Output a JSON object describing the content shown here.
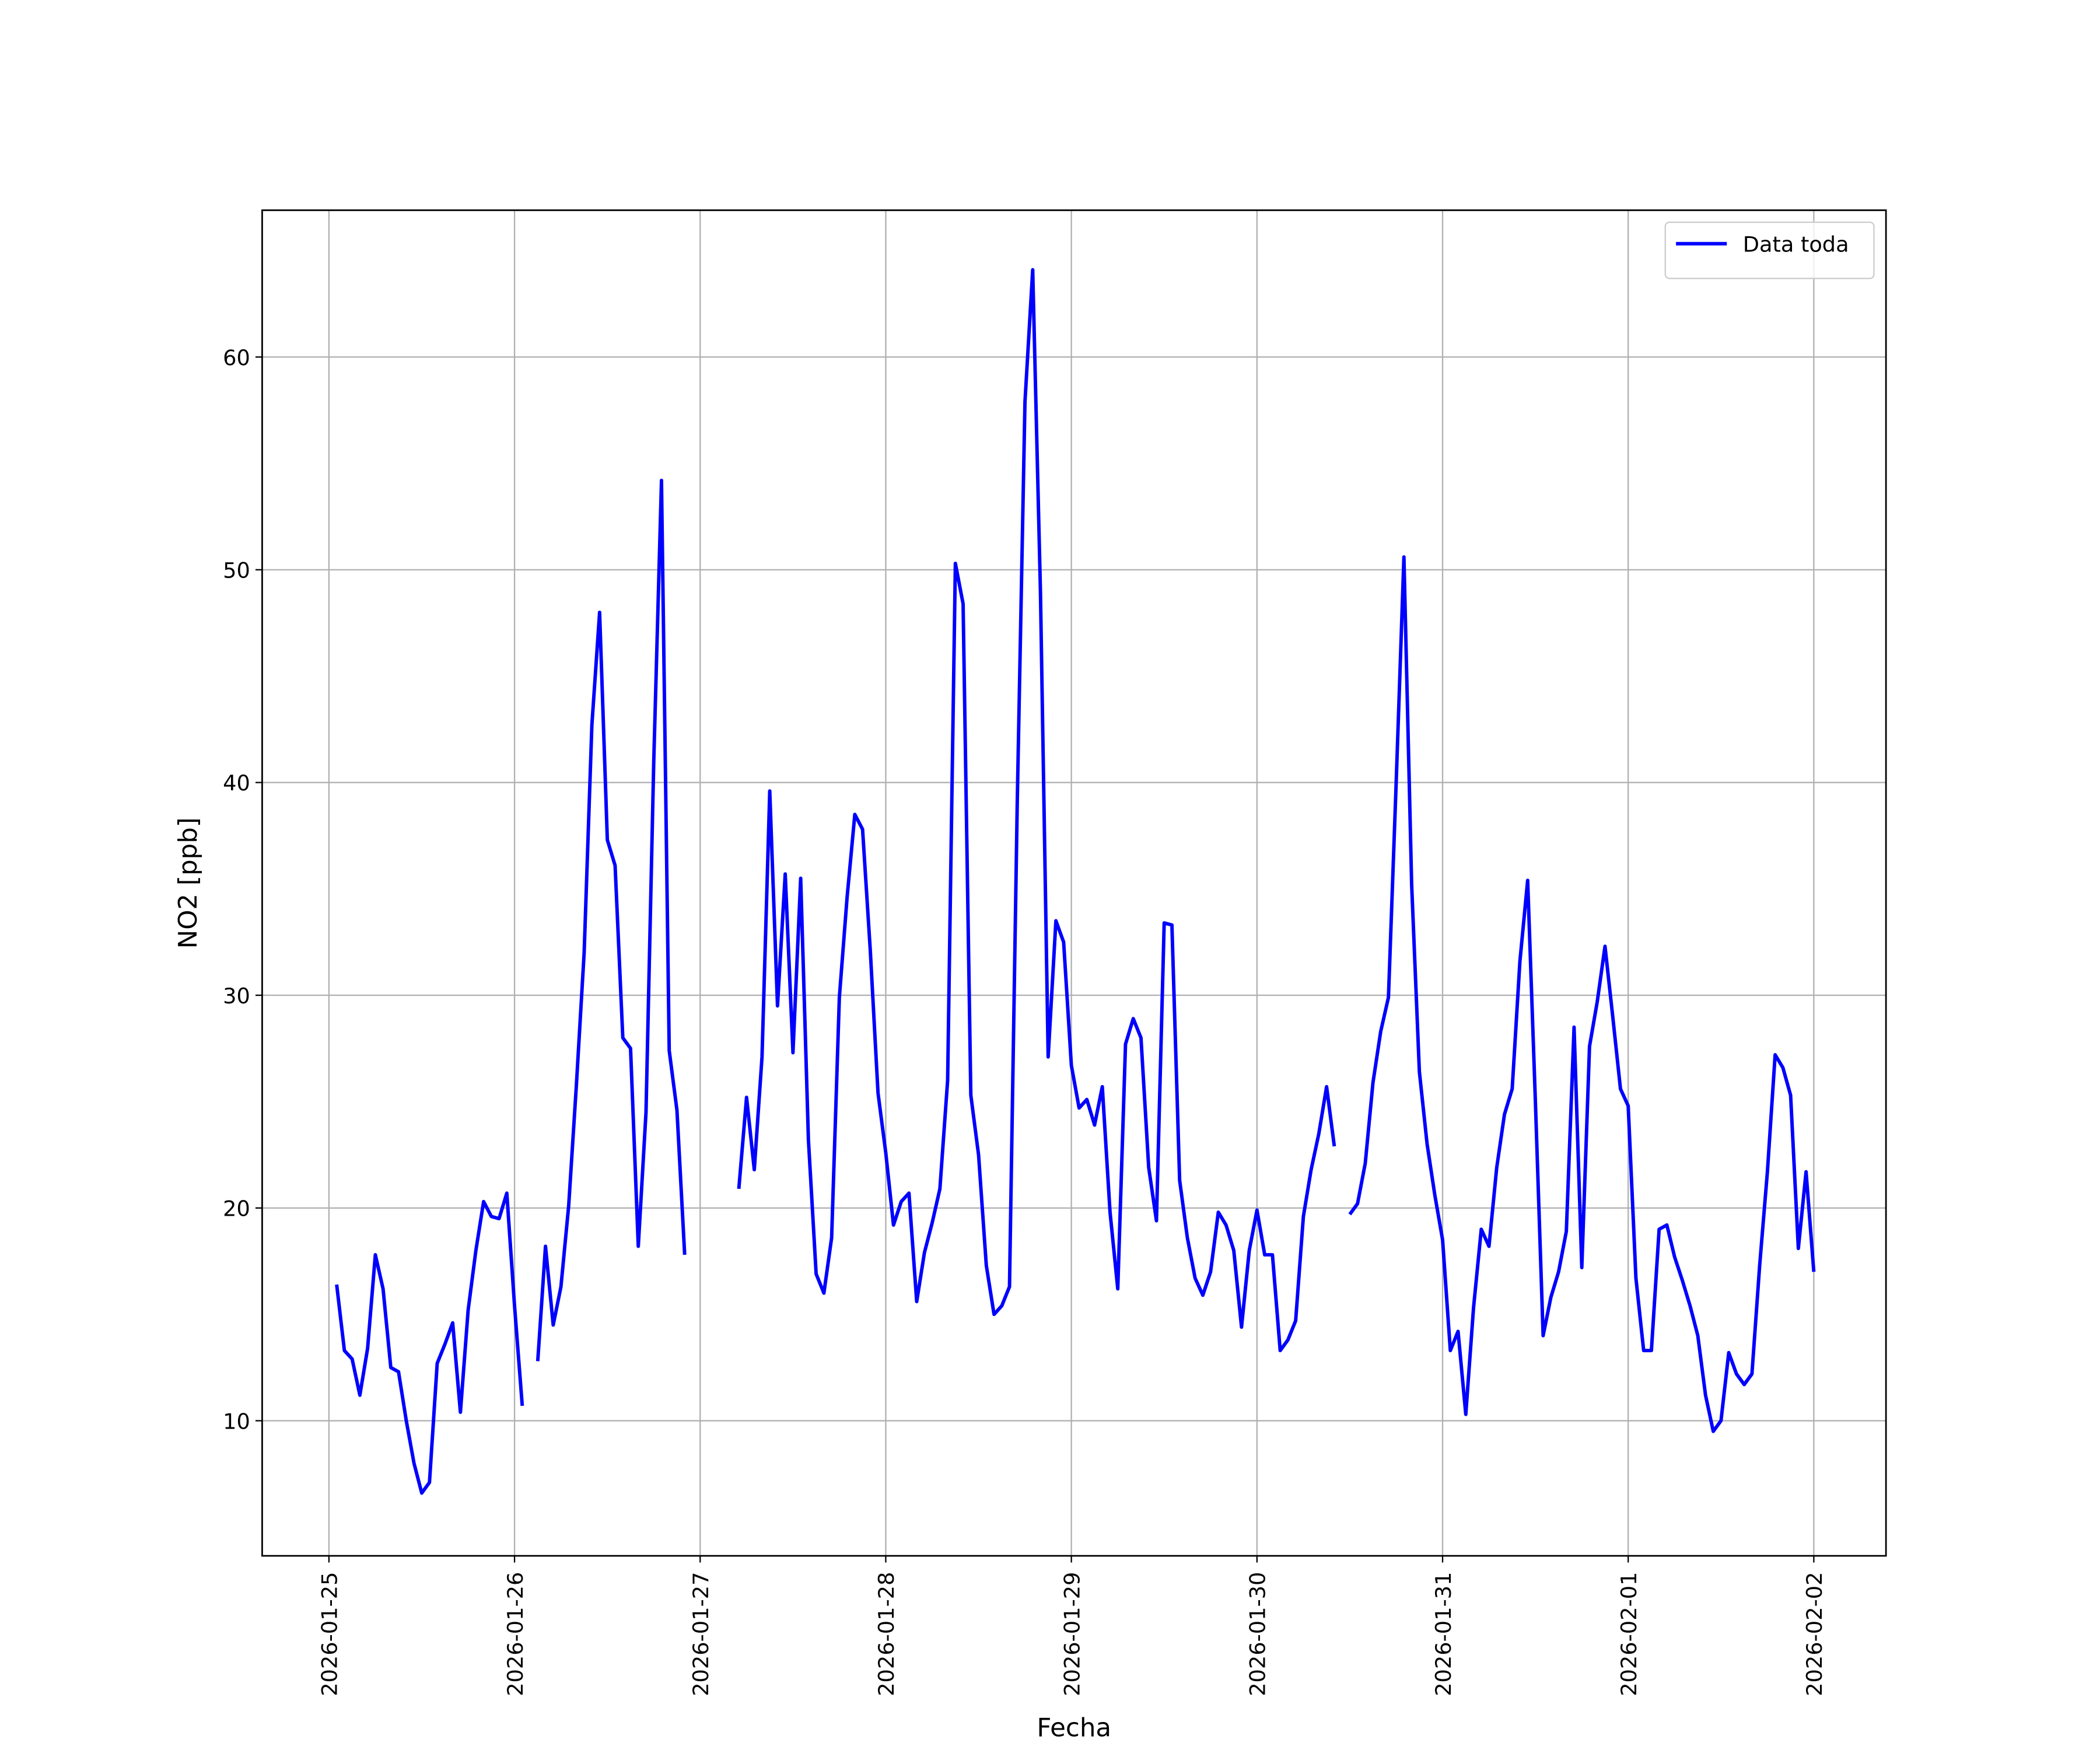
{
  "chart_data": {
    "type": "line",
    "xlabel": "Fecha",
    "ylabel": "NO2 [ppb]",
    "xlim": [
      "2026-01-24 15:22",
      "2026-02-02 09:20"
    ],
    "ylim": [
      3.65,
      66.9
    ],
    "xticks": [
      "2026-01-25",
      "2026-01-26",
      "2026-01-27",
      "2026-01-28",
      "2026-01-29",
      "2026-01-30",
      "2026-01-31",
      "2026-02-01",
      "2026-02-02"
    ],
    "yticks": [
      10,
      20,
      30,
      40,
      50,
      60
    ],
    "grid": true,
    "legend": "upper right",
    "x": [
      "2026-01-25 01:00",
      "2026-01-25 02:00",
      "2026-01-25 03:00",
      "2026-01-25 04:00",
      "2026-01-25 05:00",
      "2026-01-25 06:00",
      "2026-01-25 07:00",
      "2026-01-25 08:00",
      "2026-01-25 09:00",
      "2026-01-25 10:00",
      "2026-01-25 11:00",
      "2026-01-25 12:00",
      "2026-01-25 13:00",
      "2026-01-25 14:00",
      "2026-01-25 15:00",
      "2026-01-25 16:00",
      "2026-01-25 17:00",
      "2026-01-25 18:00",
      "2026-01-25 19:00",
      "2026-01-25 20:00",
      "2026-01-25 21:00",
      "2026-01-25 22:00",
      "2026-01-25 23:00",
      "2026-01-26 00:00",
      "2026-01-26 01:00",
      "2026-01-26 02:00",
      "2026-01-26 03:00",
      "2026-01-26 04:00",
      "2026-01-26 05:00",
      "2026-01-26 06:00",
      "2026-01-26 07:00",
      "2026-01-26 08:00",
      "2026-01-26 09:00",
      "2026-01-26 10:00",
      "2026-01-26 11:00",
      "2026-01-26 12:00",
      "2026-01-26 13:00",
      "2026-01-26 14:00",
      "2026-01-26 15:00",
      "2026-01-26 16:00",
      "2026-01-26 17:00",
      "2026-01-26 18:00",
      "2026-01-26 19:00",
      "2026-01-26 20:00",
      "2026-01-26 21:00",
      "2026-01-26 22:00",
      "2026-01-26 23:00",
      "2026-01-27 05:00",
      "2026-01-27 06:00",
      "2026-01-27 07:00",
      "2026-01-27 08:00",
      "2026-01-27 09:00",
      "2026-01-27 10:00",
      "2026-01-27 11:00",
      "2026-01-27 12:00",
      "2026-01-27 13:00",
      "2026-01-27 14:00",
      "2026-01-27 15:00",
      "2026-01-27 16:00",
      "2026-01-27 17:00",
      "2026-01-27 18:00",
      "2026-01-27 19:00",
      "2026-01-27 20:00",
      "2026-01-27 21:00",
      "2026-01-27 22:00",
      "2026-01-27 23:00",
      "2026-01-28 00:00",
      "2026-01-28 01:00",
      "2026-01-28 02:00",
      "2026-01-28 03:00",
      "2026-01-28 04:00",
      "2026-01-28 05:00",
      "2026-01-28 06:00",
      "2026-01-28 07:00",
      "2026-01-28 08:00",
      "2026-01-28 09:00",
      "2026-01-28 10:00",
      "2026-01-28 11:00",
      "2026-01-28 12:00",
      "2026-01-28 13:00",
      "2026-01-28 14:00",
      "2026-01-28 15:00",
      "2026-01-28 16:00",
      "2026-01-28 17:00",
      "2026-01-28 18:00",
      "2026-01-28 19:00",
      "2026-01-28 20:00",
      "2026-01-28 21:00",
      "2026-01-28 22:00",
      "2026-01-28 23:00",
      "2026-01-29 00:00",
      "2026-01-29 01:00",
      "2026-01-29 02:00",
      "2026-01-29 03:00",
      "2026-01-29 04:00",
      "2026-01-29 05:00",
      "2026-01-29 06:00",
      "2026-01-29 07:00",
      "2026-01-29 08:00",
      "2026-01-29 09:00",
      "2026-01-29 10:00",
      "2026-01-29 11:00",
      "2026-01-29 12:00",
      "2026-01-29 13:00",
      "2026-01-29 14:00",
      "2026-01-29 15:00",
      "2026-01-29 16:00",
      "2026-01-29 17:00",
      "2026-01-29 18:00",
      "2026-01-29 19:00",
      "2026-01-29 20:00",
      "2026-01-29 21:00",
      "2026-01-29 22:00",
      "2026-01-29 23:00",
      "2026-01-30 00:00",
      "2026-01-30 01:00",
      "2026-01-30 02:00",
      "2026-01-30 03:00",
      "2026-01-30 04:00",
      "2026-01-30 05:00",
      "2026-01-30 06:00",
      "2026-01-30 07:00",
      "2026-01-30 08:00",
      "2026-01-30 09:00",
      "2026-01-30 10:00",
      "2026-01-30 11:00",
      "2026-01-30 12:00",
      "2026-01-30 13:00",
      "2026-01-30 14:00",
      "2026-01-30 15:00",
      "2026-01-30 16:00",
      "2026-01-30 17:00",
      "2026-01-30 18:00",
      "2026-01-30 19:00",
      "2026-01-30 20:00",
      "2026-01-30 21:00",
      "2026-01-30 22:00",
      "2026-01-30 23:00",
      "2026-01-31 00:00",
      "2026-01-31 01:00",
      "2026-01-31 02:00",
      "2026-01-31 03:00",
      "2026-01-31 04:00",
      "2026-01-31 05:00",
      "2026-01-31 06:00",
      "2026-01-31 07:00",
      "2026-01-31 08:00",
      "2026-01-31 09:00",
      "2026-01-31 10:00",
      "2026-01-31 11:00",
      "2026-01-31 12:00",
      "2026-01-31 13:00",
      "2026-01-31 14:00",
      "2026-01-31 15:00",
      "2026-01-31 16:00",
      "2026-01-31 17:00",
      "2026-01-31 18:00",
      "2026-01-31 19:00",
      "2026-01-31 20:00",
      "2026-01-31 21:00",
      "2026-01-31 22:00",
      "2026-01-31 23:00",
      "2026-02-01 00:00",
      "2026-02-01 01:00",
      "2026-02-01 02:00",
      "2026-02-01 03:00",
      "2026-02-01 04:00",
      "2026-02-01 05:00",
      "2026-02-01 06:00",
      "2026-02-01 07:00",
      "2026-02-01 08:00",
      "2026-02-01 09:00",
      "2026-02-01 10:00",
      "2026-02-01 11:00",
      "2026-02-01 12:00",
      "2026-02-01 13:00",
      "2026-02-01 14:00",
      "2026-02-01 15:00",
      "2026-02-01 16:00",
      "2026-02-01 17:00",
      "2026-02-01 18:00",
      "2026-02-01 19:00",
      "2026-02-01 20:00",
      "2026-02-01 21:00",
      "2026-02-01 22:00",
      "2026-02-01 23:00",
      "2026-02-02 00:00"
    ],
    "series": [
      {
        "name": "Data toda",
        "color": "#0000ff",
        "values": [
          16.4,
          13.3,
          12.9,
          11.2,
          13.4,
          17.8,
          16.2,
          12.5,
          12.3,
          10,
          8,
          6.6,
          7.1,
          12.7,
          13.6,
          14.6,
          10.4,
          15.2,
          18,
          20.3,
          19.6,
          19.5,
          20.7,
          15.4,
          10.7,
          null,
          12.8,
          18.2,
          14.5,
          16.3,
          20.1,
          25.8,
          32,
          42.7,
          48,
          37.3,
          36.1,
          28,
          27.5,
          18.2,
          24.5,
          41,
          54.2,
          27.4,
          24.6,
          17.8,
          null,
          20.9,
          25.2,
          21.8,
          27.1,
          39.6,
          29.5,
          35.7,
          27.3,
          35.5,
          23.2,
          16.9,
          16,
          18.6,
          29.9,
          34.6,
          38.5,
          37.8,
          32.1,
          25.4,
          22.6,
          19.2,
          20.3,
          20.7,
          15.6,
          17.9,
          19.3,
          20.9,
          26,
          50.3,
          48.4,
          25.3,
          22.5,
          17.3,
          15,
          15.4,
          16.3,
          39,
          57.9,
          64.1,
          49,
          27.1,
          33.5,
          32.5,
          26.7,
          24.7,
          25.1,
          23.9,
          25.7,
          19.8,
          16.2,
          27.7,
          28.9,
          28,
          21.9,
          19.4,
          33.4,
          33.3,
          21.3,
          18.6,
          16.7,
          15.9,
          17,
          19.8,
          19.2,
          18,
          14.4,
          18,
          19.9,
          17.8,
          17.8,
          13.3,
          13.8,
          14.7,
          19.6,
          21.8,
          23.5,
          25.7,
          22.9,
          null,
          19.7,
          20.2,
          22.1,
          25.9,
          28.3,
          29.9,
          40,
          50.6,
          35.2,
          26.4,
          23,
          20.6,
          18.5,
          13.3,
          14.2,
          10.3,
          15.3,
          19,
          18.2,
          21.9,
          24.4,
          25.6,
          31.6,
          35.4,
          25,
          14,
          15.8,
          17,
          18.9,
          28.5,
          17.2,
          27.6,
          29.7,
          32.3,
          29,
          25.6,
          24.8,
          16.7,
          13.3,
          13.3,
          19,
          19.2,
          17.7,
          16.6,
          15.4,
          14,
          11.2,
          9.5,
          10,
          13.2,
          12.2,
          11.7,
          12.2,
          17.3,
          21.7,
          27.2,
          26.6,
          25.3,
          18.1,
          21.7,
          17
        ]
      }
    ]
  }
}
